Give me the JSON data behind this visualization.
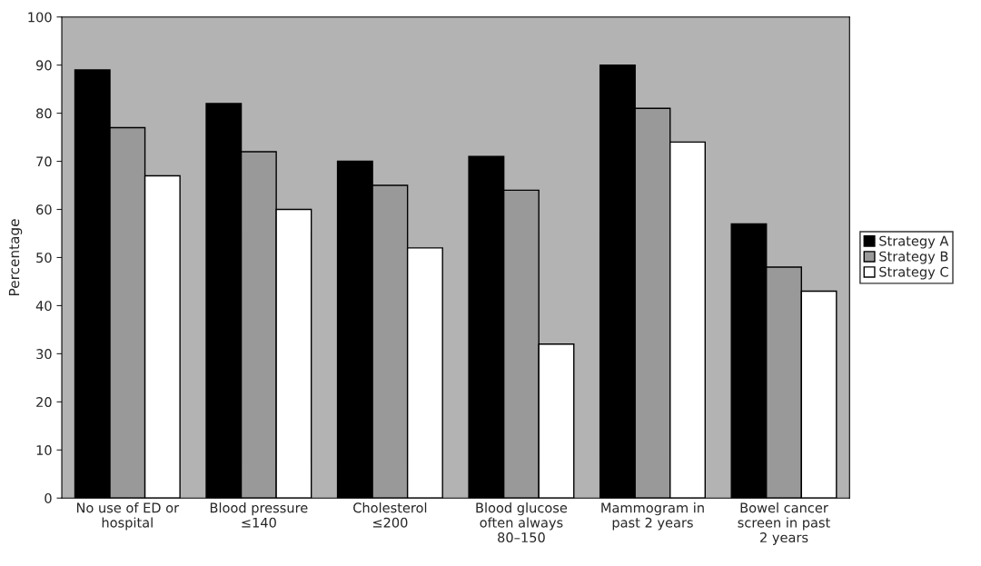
{
  "chart_data": {
    "type": "bar",
    "ylabel": "Percentage",
    "categories": [
      "No use of ED or\nhospital",
      "Blood pressure\n≤140",
      "Cholesterol\n≤200",
      "Blood glucose\noften always\n80–150",
      "Mammogram in\npast 2 years",
      "Bowel cancer\nscreen in past\n2 years"
    ],
    "series": [
      {
        "name": "Strategy A",
        "color": "#000000",
        "values": [
          89,
          82,
          70,
          71,
          90,
          57
        ]
      },
      {
        "name": "Strategy B",
        "color": "#999999",
        "values": [
          77,
          72,
          65,
          64,
          81,
          48
        ]
      },
      {
        "name": "Strategy C",
        "color": "#ffffff",
        "values": [
          67,
          60,
          52,
          32,
          74,
          43
        ]
      }
    ],
    "ylim": [
      0,
      100
    ],
    "yticks": [
      0,
      10,
      20,
      30,
      40,
      50,
      60,
      70,
      80,
      90,
      100
    ],
    "grid": false,
    "legend": "right"
  }
}
